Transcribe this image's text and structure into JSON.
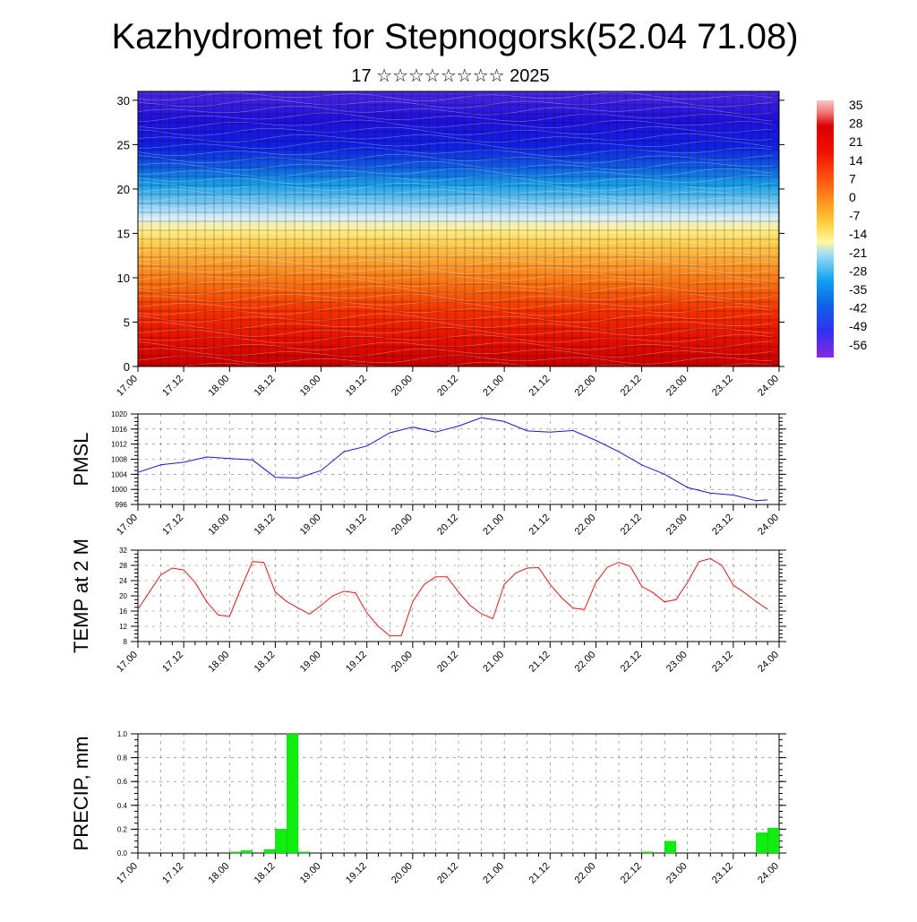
{
  "page": {
    "title": "Kazhydromet for Stepnogorsk(52.04 71.08)",
    "subtitle": "17 ☆☆☆☆☆☆☆☆ 2025"
  },
  "colors": {
    "pmsl_line": "#1515d8",
    "temp_line": "#e01818",
    "precip_bar": "#10ee10"
  },
  "chart_data": [
    {
      "type": "heatmap",
      "title": "",
      "xlabel": "",
      "ylabel": "",
      "x_ticks": [
        "17.00",
        "17.12",
        "18.00",
        "18.12",
        "19.00",
        "19.12",
        "20.00",
        "20.12",
        "21.00",
        "21.12",
        "22.00",
        "22.12",
        "23.00",
        "23.12",
        "24.00"
      ],
      "y_ticks": [
        0,
        5,
        10,
        15,
        20,
        25,
        30
      ],
      "ylim": [
        0,
        31
      ],
      "colorbar_labels": [
        "35",
        "28",
        "21",
        "14",
        "7",
        "0",
        "-7",
        "-14",
        "-21",
        "-28",
        "-35",
        "-42",
        "-49",
        "-56"
      ],
      "colorbar_range": [
        -60,
        38
      ],
      "temperature_profile_by_level": [
        {
          "level": 0,
          "value": 32
        },
        {
          "level": 3,
          "value": 27
        },
        {
          "level": 6,
          "value": 21
        },
        {
          "level": 9,
          "value": 14
        },
        {
          "level": 12,
          "value": 7
        },
        {
          "level": 14,
          "value": 0
        },
        {
          "level": 16,
          "value": -7
        },
        {
          "level": 18,
          "value": -21
        },
        {
          "level": 20,
          "value": -35
        },
        {
          "level": 22,
          "value": -45
        },
        {
          "level": 25,
          "value": -52
        },
        {
          "level": 28,
          "value": -56
        },
        {
          "level": 31,
          "value": -58
        }
      ]
    },
    {
      "type": "line",
      "ylabel": "PMSL",
      "ylim": [
        996,
        1020
      ],
      "y_ticks": [
        996,
        1000,
        1004,
        1008,
        1012,
        1016,
        1020
      ],
      "x_ticks": [
        "17.00",
        "17.12",
        "18.00",
        "18.12",
        "19.00",
        "19.12",
        "20.00",
        "20.12",
        "21.00",
        "21.12",
        "22.00",
        "22.12",
        "23.00",
        "23.12",
        "24.00"
      ],
      "xlim": [
        0,
        168
      ],
      "series": [
        {
          "x": [
            0,
            6,
            12,
            18,
            24,
            30,
            36,
            42,
            48,
            54,
            60,
            66,
            72,
            78,
            84,
            90,
            96,
            102,
            108,
            114,
            120,
            126,
            132,
            138,
            144,
            150,
            156,
            162,
            165
          ],
          "values": [
            1004.5,
            1006.5,
            1007.2,
            1008.6,
            1008.2,
            1007.8,
            1003.2,
            1003.0,
            1005.0,
            1010.0,
            1011.5,
            1015.0,
            1016.5,
            1015.2,
            1016.8,
            1019.0,
            1018.0,
            1015.5,
            1015.2,
            1015.6,
            1013.0,
            1010.0,
            1006.5,
            1004.0,
            1000.5,
            999.0,
            998.5,
            997.0,
            997.2
          ]
        }
      ]
    },
    {
      "type": "line",
      "ylabel": "TEMP at 2 M",
      "ylim": [
        8,
        32
      ],
      "y_ticks": [
        8,
        12,
        16,
        20,
        24,
        28,
        32
      ],
      "x_ticks": [
        "17.00",
        "17.12",
        "18.00",
        "18.12",
        "19.00",
        "19.12",
        "20.00",
        "20.12",
        "21.00",
        "21.12",
        "22.00",
        "22.12",
        "23.00",
        "23.12",
        "24.00"
      ],
      "xlim": [
        0,
        168
      ],
      "series": [
        {
          "x": [
            0,
            6,
            9,
            12,
            15,
            18,
            21,
            24,
            27,
            30,
            33,
            36,
            39,
            42,
            45,
            48,
            51,
            54,
            57,
            60,
            63,
            66,
            69,
            72,
            75,
            78,
            81,
            84,
            87,
            90,
            93,
            96,
            99,
            102,
            105,
            108,
            111,
            114,
            117,
            120,
            123,
            126,
            129,
            132,
            135,
            138,
            141,
            144,
            147,
            150,
            153,
            156,
            159,
            162,
            165
          ],
          "values": [
            16.5,
            25.5,
            27.3,
            26.8,
            23.5,
            18.5,
            15.0,
            14.6,
            22.0,
            29.0,
            28.8,
            21.0,
            18.5,
            16.8,
            15.2,
            17.5,
            20.0,
            21.2,
            20.8,
            15.5,
            12.0,
            9.5,
            9.5,
            18.5,
            23.0,
            25.0,
            25.0,
            21.0,
            17.5,
            15.3,
            14.0,
            23.0,
            26.0,
            27.3,
            27.4,
            23.0,
            19.5,
            16.8,
            16.4,
            23.5,
            27.5,
            28.8,
            27.8,
            22.5,
            20.8,
            18.4,
            19.0,
            23.5,
            29.0,
            29.8,
            28.0,
            22.8,
            20.8,
            18.5,
            16.5
          ]
        }
      ]
    },
    {
      "type": "bar",
      "ylabel": "PRECIP, mm",
      "ylim": [
        0,
        1.0
      ],
      "y_ticks": [
        "0.0",
        "0.2",
        "0.4",
        "0.6",
        "0.8",
        "1.0"
      ],
      "x_ticks": [
        "17.00",
        "17.12",
        "18.00",
        "18.12",
        "19.00",
        "19.12",
        "20.00",
        "20.12",
        "21.00",
        "21.12",
        "22.00",
        "22.12",
        "23.00",
        "23.12",
        "24.00"
      ],
      "xlim": [
        0,
        168
      ],
      "bar_width": 3,
      "series": [
        {
          "x": [
            0,
            3,
            6,
            9,
            12,
            15,
            18,
            21,
            24,
            27,
            30,
            33,
            36,
            39,
            42,
            45,
            48,
            51,
            54,
            57,
            60,
            63,
            66,
            69,
            72,
            75,
            78,
            81,
            84,
            87,
            90,
            93,
            96,
            99,
            102,
            105,
            108,
            111,
            114,
            117,
            120,
            123,
            126,
            129,
            132,
            135,
            138,
            141,
            144,
            147,
            150,
            153,
            156,
            159,
            162,
            165
          ],
          "values": [
            0,
            0,
            0,
            0,
            0,
            0,
            0,
            0,
            0.01,
            0.02,
            0,
            0.03,
            0.2,
            1.0,
            0.01,
            0,
            0,
            0,
            0,
            0,
            0,
            0,
            0,
            0,
            0,
            0,
            0,
            0,
            0,
            0,
            0,
            0,
            0,
            0,
            0,
            0,
            0,
            0,
            0,
            0,
            0,
            0,
            0,
            0,
            0.01,
            0,
            0.1,
            0,
            0,
            0,
            0,
            0,
            0,
            0,
            0.17,
            0.21
          ]
        }
      ]
    }
  ]
}
